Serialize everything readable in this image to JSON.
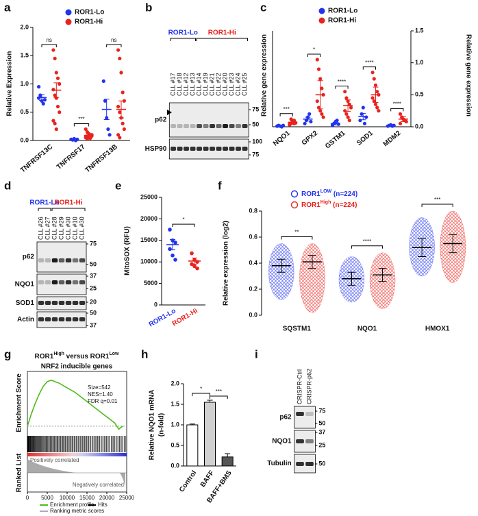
{
  "panels": {
    "a": {
      "letter": "a",
      "type": "dot",
      "y_label": "Relative Expression",
      "ylim": [
        0,
        2
      ],
      "yticks": [
        {
          "value": 0,
          "label": "0.0"
        },
        {
          "value": 0.5,
          "label": "0.5"
        },
        {
          "value": 1,
          "label": "1.0"
        },
        {
          "value": 1.5,
          "label": "1.5"
        },
        {
          "value": 2,
          "label": "2.0"
        }
      ],
      "categories": [
        "TNFRSF13C",
        "TNFRSF17",
        "TNFRSF13B"
      ],
      "significance": [
        "ns",
        "***",
        "ns"
      ],
      "series": [
        {
          "name": "ROR1-Lo",
          "color": "#2233ee",
          "values": [
            [
              0.75,
              0.8,
              0.7,
              0.65,
              0.72,
              0.95
            ],
            [
              0.02,
              0.01,
              0.03,
              0,
              0.02
            ],
            [
              1.05,
              0.7,
              0.4,
              0.2,
              0.1
            ]
          ],
          "means": [
            0.76,
            0.02,
            0.55
          ],
          "errors": [
            0.05,
            0.01,
            0.18
          ]
        },
        {
          "name": "ROR1-Hi",
          "color": "#e8231e",
          "values": [
            [
              1.6,
              1.45,
              1.2,
              1.1,
              1.0,
              0.9,
              0.8,
              0.75,
              0.6,
              0.5,
              0.35,
              0.3,
              0.2
            ],
            [
              0.2,
              0.15,
              0.12,
              0.1,
              0.08,
              0.07,
              0.06,
              0.05,
              0.04,
              0.1,
              0.05,
              0.03
            ],
            [
              1.6,
              1.45,
              1.2,
              0.85,
              0.7,
              0.6,
              0.5,
              0.4,
              0.3,
              0.2,
              0.1,
              0.05
            ]
          ],
          "means": [
            0.89,
            0.09,
            0.55
          ],
          "errors": [
            0.13,
            0.02,
            0.15
          ]
        }
      ]
    },
    "b": {
      "letter": "b",
      "type": "blot",
      "groups": [
        {
          "name": "ROR1-Lo",
          "color": "#2233ee",
          "lanes": [
            "CLL #17",
            "CLL #18",
            "CLL #12",
            "CLL #13"
          ]
        },
        {
          "name": "ROR1-Hi",
          "color": "#e8231e",
          "lanes": [
            "CLL #14",
            "CLL #19",
            "CLL #21",
            "CLL #22",
            "CLL #20",
            "CLL #23",
            "CLL #24",
            "CLL #25"
          ]
        }
      ],
      "rows": [
        {
          "label": "p62",
          "markers": [
            75,
            50
          ]
        },
        {
          "label": "HSP90",
          "markers": [
            100,
            75
          ]
        }
      ]
    },
    "c": {
      "letter": "c",
      "type": "dot",
      "y_label": "Relative gene expression",
      "y2_label": "Relative gene expression",
      "ylim": [
        0,
        1.5
      ],
      "yticks": [
        {
          "value": 0,
          "label": "0.0"
        },
        {
          "value": 0.5,
          "label": "0.5"
        },
        {
          "value": 1,
          "label": "1.0"
        },
        {
          "value": 1.5,
          "label": "1.5"
        }
      ],
      "categories": [
        "NQO1",
        "GPX2",
        "GSTM1",
        "SOD1",
        "MDM2"
      ],
      "significance": [
        "***",
        "*",
        "****",
        "****",
        "****"
      ],
      "series": [
        {
          "name": "ROR1-Lo",
          "color": "#2233ee",
          "values": [
            [
              0.01,
              0.02,
              0.01,
              0,
              0.02,
              0.01
            ],
            [
              0.05,
              0.1,
              0.15,
              0.2,
              0.08
            ],
            [
              0.02,
              0.05,
              0.08,
              0.1,
              0.04,
              0.03
            ],
            [
              0.1,
              0.2,
              0.3,
              0.05,
              0.15
            ],
            [
              0.01,
              0.02,
              0.03,
              0.01,
              0.02
            ]
          ],
          "means": [
            0.01,
            0.12,
            0.05,
            0.16,
            0.02
          ],
          "errors": [
            0.01,
            0.03,
            0.02,
            0.05,
            0.01
          ]
        },
        {
          "name": "ROR1-Hi",
          "color": "#e8231e",
          "values": [
            [
              0.03,
              0.05,
              0.08,
              0.1,
              0.06,
              0.04,
              0.12,
              0.07,
              0.05
            ],
            [
              1.05,
              0.9,
              0.75,
              0.6,
              0.5,
              0.4,
              0.3,
              0.25,
              0.2,
              0.15
            ],
            [
              0.55,
              0.45,
              0.4,
              0.35,
              0.3,
              0.25,
              0.2,
              0.15,
              0.1
            ],
            [
              0.85,
              0.75,
              0.65,
              0.55,
              0.5,
              0.45,
              0.4,
              0.35,
              0.3,
              0.25
            ],
            [
              0.2,
              0.15,
              0.12,
              0.1,
              0.08,
              0.05
            ]
          ],
          "means": [
            0.07,
            0.5,
            0.33,
            0.5,
            0.12
          ],
          "errors": [
            0.02,
            0.22,
            0.09,
            0.12,
            0.04
          ]
        }
      ]
    },
    "d": {
      "letter": "d",
      "type": "blot",
      "groups": [
        {
          "name": "ROR1-Lo",
          "color": "#2233ee",
          "lanes": [
            "CLL #26",
            "CLL #27"
          ]
        },
        {
          "name": "ROR1-Hi",
          "color": "#e8231e",
          "lanes": [
            "CLL #28",
            "CLL #29",
            "CLL #30",
            "CLL #10",
            "CLL #30"
          ]
        }
      ],
      "rows": [
        {
          "label": "p62",
          "markers": [
            75,
            50
          ]
        },
        {
          "label": "NQO1",
          "markers": [
            37,
            25
          ]
        },
        {
          "label": "SOD1",
          "markers": [
            20
          ]
        },
        {
          "label": "Actin",
          "markers": [
            50,
            37
          ]
        }
      ]
    },
    "e": {
      "letter": "e",
      "type": "dot_single",
      "y_label": "MitoSOX (RFU)",
      "ylim": [
        0,
        25000
      ],
      "yticks": [
        0,
        5000,
        10000,
        15000,
        20000,
        25000
      ],
      "categories": [
        "ROR1-Lo",
        "ROR1-Hi"
      ],
      "colors": [
        "#2233ee",
        "#e8231e"
      ],
      "values": [
        [
          17500,
          15000,
          14500,
          13000,
          11500,
          10500
        ],
        [
          12000,
          10500,
          10000,
          9500,
          9000,
          8500
        ]
      ],
      "means": [
        14000,
        10200
      ],
      "errors": [
        1200,
        700
      ],
      "significance": "*"
    },
    "f": {
      "letter": "f",
      "type": "cloud",
      "y_label": "Relative expression (log2)",
      "ylim": [
        0,
        0.8
      ],
      "yticks": [
        {
          "value": 0,
          "label": "0.0"
        },
        {
          "value": 0.2,
          "label": "0.2"
        },
        {
          "value": 0.4,
          "label": "0.4"
        },
        {
          "value": 0.6,
          "label": "0.6"
        },
        {
          "value": 0.8,
          "label": "0.8"
        }
      ],
      "categories": [
        "SQSTM1",
        "NQO1",
        "HMOX1"
      ],
      "significance": [
        "**",
        "****",
        "***"
      ],
      "series": [
        {
          "name": "ROR1",
          "name_sup": "LOW",
          "name_suffix": " (n=224)",
          "color": "#2233ee",
          "means": [
            0.38,
            0.28,
            0.52
          ],
          "sd": [
            0.05,
            0.05,
            0.07
          ],
          "min": [
            0.12,
            0.1,
            0.3
          ],
          "max": [
            0.55,
            0.45,
            0.75
          ]
        },
        {
          "name": "ROR1",
          "name_sup": "High",
          "name_suffix": " (n=224)",
          "color": "#e8231e",
          "means": [
            0.41,
            0.31,
            0.55
          ],
          "sd": [
            0.05,
            0.05,
            0.07
          ],
          "min": [
            0.02,
            0.05,
            0.25
          ],
          "max": [
            0.55,
            0.48,
            0.8
          ]
        }
      ]
    },
    "g": {
      "letter": "g",
      "type": "gsea",
      "title_parts": [
        "ROR1",
        "High",
        " versus ROR1",
        "Low"
      ],
      "subtitle": "NRF2 inducible genes",
      "y_label": "Enrichment Score",
      "y2_label": "Ranked List",
      "stats": [
        "Size=542",
        "NES=1.40",
        "FDR q=0.01"
      ],
      "positive_label": "Positively correlated",
      "negative_label": "Negatively correlated",
      "x": [
        0,
        1000,
        2000,
        3000,
        4000,
        5000,
        6000,
        7000,
        8000,
        10000,
        12000,
        14000,
        16000,
        18000,
        20000,
        22000,
        23000,
        24000
      ],
      "values": [
        0,
        0.08,
        0.15,
        0.21,
        0.26,
        0.29,
        0.3,
        0.29,
        0.28,
        0.25,
        0.22,
        0.18,
        0.14,
        0.1,
        0.06,
        0.02,
        -0.02,
        0
      ],
      "xlim": [
        0,
        25000
      ],
      "ylim": [
        -0.05,
        0.33
      ],
      "xticks": [
        0,
        5000,
        10000,
        15000,
        20000,
        25000
      ],
      "color": "#4cbb17",
      "legend": [
        "Enrichment profile",
        "Hits",
        "Ranking metric scores"
      ],
      "legend_colors": [
        "#4cbb17",
        "#000000",
        "#b0a8c8"
      ]
    },
    "h": {
      "letter": "h",
      "type": "bar",
      "y_label": [
        "Relative NQO1 mRNA",
        "(n-fold)"
      ],
      "ylim": [
        0,
        2
      ],
      "yticks": [
        {
          "value": 0,
          "label": "0.0"
        },
        {
          "value": 0.5,
          "label": "0.5"
        },
        {
          "value": 1,
          "label": "1.0"
        },
        {
          "value": 1.5,
          "label": "1.5"
        },
        {
          "value": 2,
          "label": "2.0"
        }
      ],
      "categories": [
        "Control",
        "BAFF",
        "BAFF+BMS"
      ],
      "values": [
        1.0,
        1.55,
        0.22
      ],
      "errors": [
        0.02,
        0.05,
        0.08
      ],
      "colors": [
        "#ffffff",
        "#d0d0d0",
        "#555555"
      ],
      "significance": [
        "*",
        "***"
      ]
    },
    "i": {
      "letter": "i",
      "type": "blot",
      "groups": [
        {
          "lanes": [
            "CRISPR-Ctrl",
            "CRISPR-p62"
          ]
        }
      ],
      "rows": [
        {
          "label": "p62",
          "markers": [
            75,
            50
          ]
        },
        {
          "label": "NQO1",
          "markers": [
            37,
            25
          ]
        },
        {
          "label": "Tubulin",
          "markers": [
            50
          ]
        }
      ]
    }
  }
}
